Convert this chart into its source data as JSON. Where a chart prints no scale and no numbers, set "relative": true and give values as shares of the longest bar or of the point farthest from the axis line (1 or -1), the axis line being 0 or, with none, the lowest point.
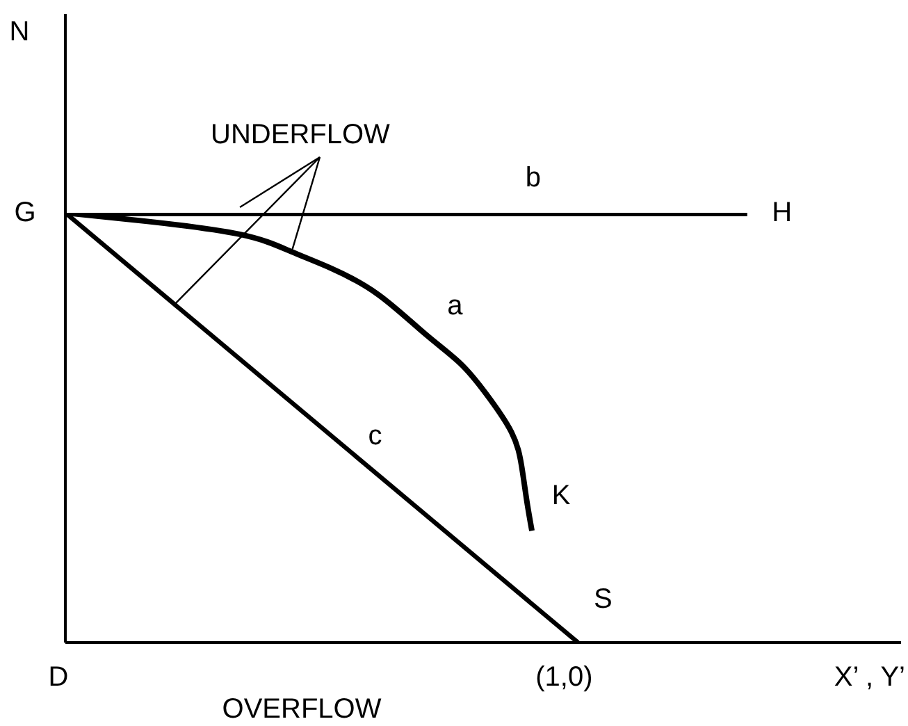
{
  "chart_data": {
    "type": "line",
    "relative": true,
    "xlabel": "X’ , Y’",
    "categories": [
      null,
      null,
      null,
      null,
      null,
      null,
      null,
      null,
      null,
      null,
      null,
      null,
      null,
      null,
      null,
      null,
      null,
      null,
      null,
      null,
      null,
      null,
      null,
      null,
      null,
      null,
      null,
      null,
      null,
      null,
      null,
      null,
      null,
      null,
      null,
      null,
      null,
      null,
      null,
      null,
      null,
      null,
      null,
      null,
      null,
      null,
      null,
      null,
      null,
      null,
      null,
      null,
      null,
      null,
      null,
      null,
      null,
      null,
      null,
      null,
      null,
      null,
      null,
      null,
      null,
      null,
      null,
      null,
      null,
      null,
      null,
      null,
      null,
      null,
      null,
      null,
      null,
      null,
      null,
      null,
      null,
      null,
      null,
      null,
      null,
      null,
      null,
      null,
      null,
      null,
      null,
      null,
      null,
      null,
      null,
      null,
      null,
      null,
      null,
      null,
      null,
      null,
      null,
      null,
      null,
      null,
      null,
      null,
      null,
      null,
      null,
      null,
      null,
      null,
      null,
      null,
      null,
      null,
      null,
      null,
      null,
      null,
      null,
      null,
      null,
      null,
      null,
      null,
      null,
      null,
      null,
      null,
      null,
      null,
      null,
      null,
      null,
      null,
      null,
      null,
      null,
      null,
      null,
      null,
      null,
      null,
      null,
      null,
      null,
      null,
      null,
      null,
      null,
      null,
      null,
      null,
      null,
      null,
      null,
      null,
      null,
      null,
      null,
      null
    ],
    "series": [
      {
        "name": "a",
        "color": "#000000",
        "values": [
          1,
          null,
          null,
          null,
          null,
          null,
          null,
          null,
          null,
          null,
          null,
          null,
          null,
          null,
          null,
          null,
          0.98,
          null,
          null,
          null,
          null,
          null,
          null,
          null,
          null,
          null,
          null,
          null,
          null,
          null,
          null,
          null,
          null,
          null,
          0.95,
          null,
          null,
          null,
          null,
          null,
          null,
          null,
          null,
          null,
          0.91,
          null,
          null,
          null,
          null,
          null,
          null,
          null,
          0.87,
          null,
          null,
          null,
          null,
          null,
          null,
          null,
          null,
          0.81,
          null,
          null,
          null,
          null,
          null,
          null,
          null,
          null,
          0.72,
          null,
          null,
          null,
          null,
          null,
          null,
          0.65,
          null,
          null,
          null,
          null,
          0.58,
          null,
          null,
          null,
          null,
          0.49,
          null,
          0.41,
          0.33,
          0.26,
          null,
          null,
          null,
          null,
          null,
          null,
          null,
          null,
          null,
          null,
          null,
          null,
          null,
          null,
          null,
          null,
          null,
          null,
          null,
          null,
          null,
          null,
          null,
          null,
          null,
          null,
          null,
          null,
          null,
          null,
          null,
          null,
          null,
          null,
          null,
          null,
          null,
          null,
          null,
          null,
          null,
          null,
          null,
          null,
          null,
          null,
          null,
          null,
          null,
          null,
          null,
          null,
          null,
          null,
          null,
          null,
          null,
          null,
          null,
          null,
          null,
          null,
          null,
          null,
          null,
          null,
          null,
          null,
          null,
          null,
          null,
          null
        ]
      },
      {
        "name": "b",
        "color": "#000000",
        "values": [
          1,
          null,
          null,
          null,
          null,
          null,
          null,
          null,
          null,
          null,
          null,
          null,
          null,
          null,
          null,
          null,
          null,
          null,
          null,
          null,
          null,
          null,
          null,
          null,
          null,
          null,
          null,
          null,
          null,
          null,
          null,
          null,
          null,
          null,
          null,
          null,
          null,
          null,
          null,
          null,
          null,
          null,
          null,
          null,
          null,
          null,
          null,
          null,
          null,
          null,
          null,
          null,
          null,
          null,
          null,
          null,
          null,
          null,
          null,
          null,
          null,
          null,
          null,
          null,
          null,
          null,
          null,
          null,
          null,
          null,
          null,
          null,
          null,
          null,
          null,
          null,
          null,
          null,
          null,
          null,
          null,
          null,
          null,
          null,
          null,
          null,
          null,
          null,
          null,
          null,
          null,
          null,
          null,
          null,
          null,
          null,
          null,
          null,
          null,
          null,
          null,
          null,
          null,
          null,
          null,
          null,
          null,
          null,
          null,
          null,
          null,
          null,
          null,
          null,
          null,
          null,
          null,
          null,
          null,
          null,
          null,
          null,
          null,
          null,
          null,
          null,
          null,
          null,
          null,
          null,
          null,
          null,
          null,
          1,
          null,
          null,
          null,
          null,
          null,
          null,
          null,
          null,
          null,
          null,
          null,
          null,
          null,
          null,
          null,
          null,
          null,
          null,
          null,
          null,
          null,
          null,
          null,
          null,
          null,
          null,
          null,
          null,
          null,
          null
        ]
      },
      {
        "name": "c",
        "color": "#000000",
        "values": [
          1,
          null,
          null,
          null,
          null,
          null,
          null,
          null,
          null,
          null,
          null,
          null,
          null,
          null,
          null,
          null,
          null,
          null,
          null,
          null,
          null,
          null,
          null,
          null,
          null,
          null,
          null,
          null,
          null,
          null,
          null,
          null,
          null,
          null,
          null,
          null,
          null,
          null,
          null,
          null,
          null,
          null,
          null,
          null,
          null,
          null,
          null,
          null,
          null,
          null,
          null,
          null,
          null,
          null,
          null,
          null,
          null,
          null,
          null,
          null,
          null,
          null,
          null,
          null,
          null,
          null,
          null,
          null,
          null,
          null,
          null,
          null,
          null,
          null,
          null,
          null,
          null,
          null,
          null,
          null,
          null,
          null,
          null,
          null,
          null,
          null,
          null,
          null,
          null,
          null,
          null,
          null,
          null,
          null,
          null,
          null,
          null,
          null,
          null,
          null,
          0,
          null,
          null,
          null,
          null,
          null,
          null,
          null,
          null,
          null,
          null,
          null,
          null,
          null,
          null,
          null,
          null,
          null,
          null,
          null,
          null,
          null,
          null,
          null,
          null,
          null,
          null,
          null,
          null,
          null,
          null,
          null,
          null,
          null,
          null,
          null,
          null,
          null,
          null,
          null,
          null,
          null,
          null,
          null,
          null,
          null,
          null,
          null,
          null,
          null,
          null,
          null,
          null,
          null,
          null,
          null,
          null,
          null,
          null,
          null,
          null,
          null,
          null,
          null
        ]
      }
    ],
    "annotations": [
      "G",
      "H",
      "K",
      "S",
      "D",
      "(1,0)",
      "UNDERFLOW",
      "OVERFLOW",
      "N"
    ]
  }
}
